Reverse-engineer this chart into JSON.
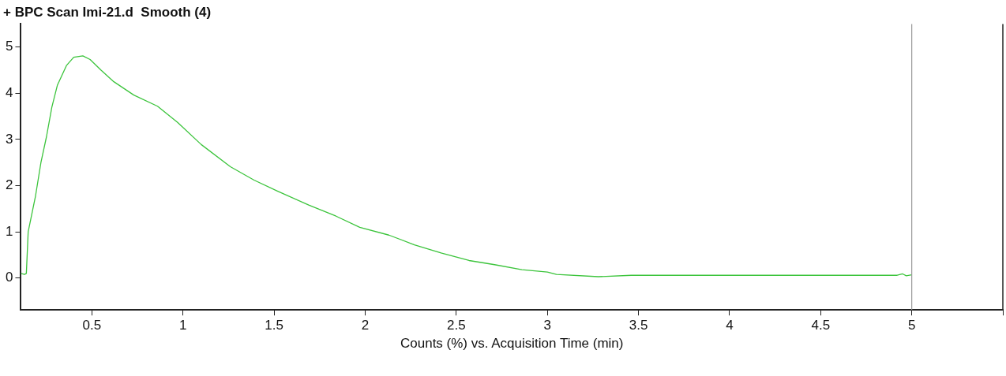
{
  "chart_data": {
    "type": "line",
    "title": "+ BPC Scan Imi-21.d  Smooth (4)",
    "xlabel": "Counts (%) vs. Acquisition Time (min)",
    "series": [
      {
        "color": "#3cc43c",
        "x": [
          0.11,
          0.13,
          0.14,
          0.15,
          0.19,
          0.22,
          0.25,
          0.28,
          0.31,
          0.36,
          0.4,
          0.45,
          0.49,
          0.55,
          0.62,
          0.73,
          0.86,
          0.97,
          1.1,
          1.26,
          1.39,
          1.52,
          1.69,
          1.84,
          1.97,
          2.13,
          2.27,
          2.42,
          2.57,
          2.71,
          2.86,
          3.0,
          3.05,
          3.28,
          3.46,
          4.92,
          4.95,
          4.97,
          5.0
        ],
        "values": [
          0.1,
          0.08,
          0.1,
          1.0,
          1.77,
          2.5,
          3.05,
          3.7,
          4.17,
          4.6,
          4.78,
          4.81,
          4.73,
          4.5,
          4.25,
          3.96,
          3.72,
          3.37,
          2.89,
          2.41,
          2.12,
          1.88,
          1.58,
          1.34,
          1.1,
          0.93,
          0.72,
          0.54,
          0.38,
          0.29,
          0.18,
          0.13,
          0.08,
          0.03,
          0.06,
          0.06,
          0.09,
          0.05,
          0.07
        ]
      }
    ],
    "xlim": [
      0.11,
      5.5
    ],
    "xticks": [
      0.5,
      1,
      1.5,
      2,
      2.5,
      3,
      3.5,
      4,
      4.5,
      5,
      {
        "value": 5.5,
        "label": null
      }
    ],
    "ylim": [
      -0.69,
      5.5
    ],
    "yticks": [
      0,
      1,
      2,
      3,
      4,
      5
    ],
    "ref_lines": [
      {
        "axis": "x",
        "value": 5,
        "color": "#999999"
      }
    ],
    "grid": false,
    "legend": false,
    "marker": "none",
    "line_style": "solid"
  }
}
